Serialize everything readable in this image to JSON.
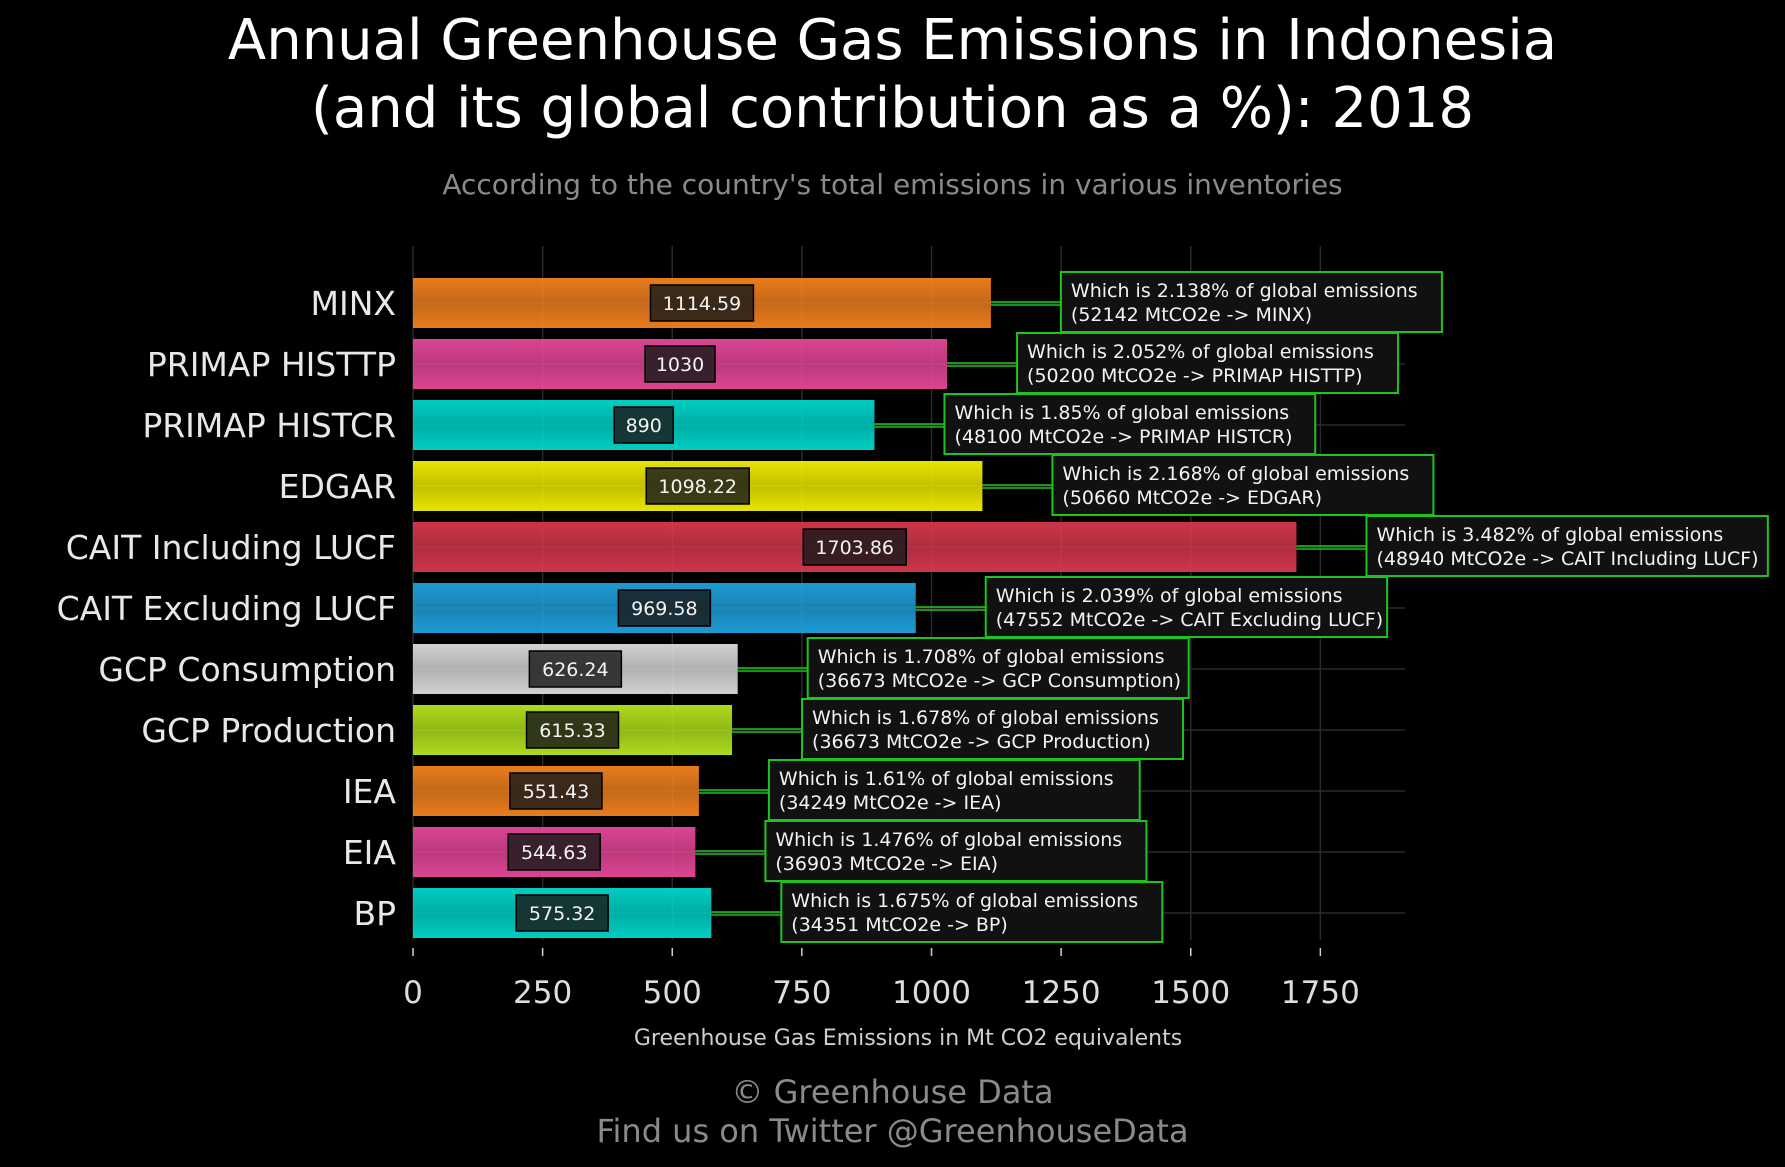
{
  "title_line1": "Annual Greenhouse Gas Emissions in Indonesia",
  "title_line2": "(and its global contribution as a %): 2018",
  "subtitle": "According to the country's total emissions in various inventories",
  "footer_line1": "© Greenhouse Data",
  "footer_line2": "Find us on Twitter @GreenhouseData",
  "chart_data": {
    "type": "bar",
    "orientation": "horizontal",
    "xlabel": "Greenhouse Gas Emissions in Mt CO2 equivalents",
    "xlim": [
      0,
      1900
    ],
    "xticks": [
      0,
      250,
      500,
      750,
      1000,
      1250,
      1500,
      1750
    ],
    "grid": true,
    "categories": [
      "MINX",
      "PRIMAP HISTTP",
      "PRIMAP HISTCR",
      "EDGAR",
      "CAIT Including LUCF",
      "CAIT Excluding LUCF",
      "GCP Consumption",
      "GCP Production",
      "IEA",
      "EIA",
      "BP"
    ],
    "values": [
      1114.59,
      1030,
      890,
      1098.22,
      1703.86,
      969.58,
      626.24,
      615.33,
      551.43,
      544.63,
      575.32
    ],
    "value_labels": [
      "1114.59",
      "1030",
      "890",
      "1098.22",
      "1703.86",
      "969.58",
      "626.24",
      "615.33",
      "551.43",
      "544.63",
      "575.32"
    ],
    "colors": [
      "#f5821f",
      "#e8489a",
      "#00d8cc",
      "#f2f000",
      "#d9384e",
      "#1fa3e0",
      "#dcdcdc",
      "#b5e61d",
      "#f5821f",
      "#e8489a",
      "#00d8cc"
    ],
    "annotations": [
      {
        "line1": "Which is 2.138% of global emissions",
        "line2": "(52142 MtCO2e -> MINX)"
      },
      {
        "line1": "Which is 2.052% of global emissions",
        "line2": "(50200 MtCO2e -> PRIMAP HISTTP)"
      },
      {
        "line1": "Which is 1.85% of global emissions",
        "line2": "(48100 MtCO2e -> PRIMAP HISTCR)"
      },
      {
        "line1": "Which is 2.168% of global emissions",
        "line2": "(50660 MtCO2e -> EDGAR)"
      },
      {
        "line1": "Which is 3.482% of global emissions",
        "line2": "(48940 MtCO2e -> CAIT Including LUCF)"
      },
      {
        "line1": "Which is 2.039% of global emissions",
        "line2": "(47552 MtCO2e -> CAIT Excluding LUCF)"
      },
      {
        "line1": "Which is 1.708% of global emissions",
        "line2": "(36673 MtCO2e -> GCP Consumption)"
      },
      {
        "line1": "Which is 1.678% of global emissions",
        "line2": "(36673 MtCO2e -> GCP Production)"
      },
      {
        "line1": "Which is 1.61% of global emissions",
        "line2": "(34249 MtCO2e -> IEA)"
      },
      {
        "line1": "Which is 1.476% of global emissions",
        "line2": "(36903 MtCO2e -> EIA)"
      },
      {
        "line1": "Which is 1.675% of global emissions",
        "line2": "(34351 MtCO2e -> BP)"
      }
    ],
    "annotation_border_color": "#1ec41e",
    "annotation_bg_color": "#111111"
  }
}
